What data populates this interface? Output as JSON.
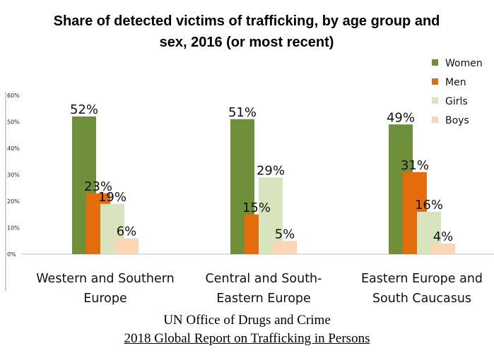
{
  "chart_data": {
    "type": "bar",
    "title_lines": [
      "Share of detected victims of trafficking, by age group and",
      "sex, 2016 (or most recent)"
    ],
    "categories": [
      [
        "Western and Southern",
        "Europe"
      ],
      [
        "Central and South-",
        "Eastern Europe"
      ],
      [
        "Eastern Europe and",
        "South Caucasus"
      ]
    ],
    "series": [
      {
        "name": "Women",
        "color": "#6f8f3a",
        "values": [
          52,
          51,
          49
        ]
      },
      {
        "name": "Men",
        "color": "#e46c0a",
        "values": [
          23,
          15,
          31
        ]
      },
      {
        "name": "Girls",
        "color": "#d7e4bd",
        "values": [
          19,
          29,
          16
        ]
      },
      {
        "name": "Boys",
        "color": "#fcd5b5",
        "values": [
          6,
          5,
          4
        ]
      }
    ],
    "data_label_suffix": "%",
    "ylim": [
      0,
      60
    ],
    "yticks": [
      "0%",
      "10%",
      "20%",
      "30%",
      "40%",
      "50%",
      "60%"
    ],
    "legend_position": "top-right",
    "grid": false
  },
  "source": {
    "organization": "UN Office of Drugs and Crime",
    "report": "2018 Global Report on Trafficking in Persons"
  }
}
